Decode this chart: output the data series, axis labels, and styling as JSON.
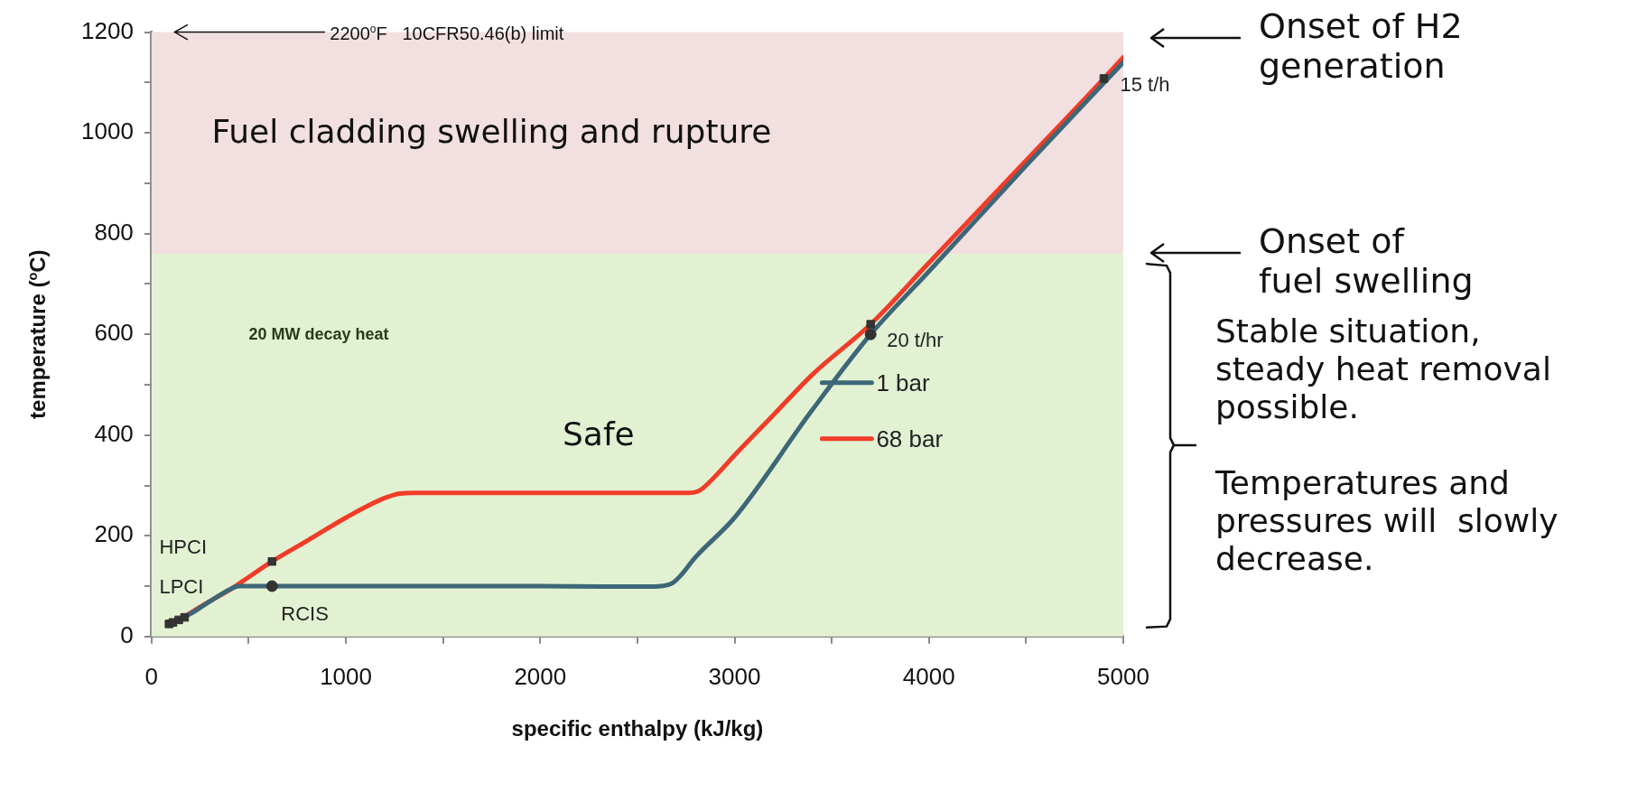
{
  "chart_data": {
    "type": "line",
    "xlabel": "specific enthalpy (kJ/kg)",
    "ylabel": "temperature ($^{o}$C)",
    "xlim": [
      0,
      5000
    ],
    "ylim": [
      0,
      1200
    ],
    "xticks": [
      0,
      {
        "value": 500,
        "label": null
      },
      1000,
      {
        "value": 1500,
        "label": null
      },
      2000,
      {
        "value": 2500,
        "label": null
      },
      3000,
      {
        "value": 3500,
        "label": null
      },
      4000,
      {
        "value": 4500,
        "label": null
      },
      5000
    ],
    "yticks": [
      0,
      {
        "value": 100,
        "label": null
      },
      200,
      {
        "value": 300,
        "label": null
      },
      400,
      {
        "value": 500,
        "label": null
      },
      600,
      {
        "value": 700,
        "label": null
      },
      800,
      {
        "value": 900,
        "label": null
      },
      1000,
      {
        "value": 1100,
        "label": null
      },
      1200
    ],
    "legend": "right",
    "marker": "none",
    "line_style": "solid",
    "series": [
      {
        "name": "1 bar",
        "color": "#3d6777",
        "x": [
          100,
          200,
          300,
          400,
          450,
          500,
          1000,
          2000,
          2550,
          2620,
          2680,
          2720,
          2800,
          3000,
          3400,
          3700,
          4000,
          4500,
          5000
        ],
        "values": [
          25,
          45,
          70,
          93,
          100,
          100,
          100,
          100,
          99,
          100,
          106,
          120,
          158,
          236,
          450,
          600,
          725,
          935,
          1140
        ]
      },
      {
        "name": "68 bar",
        "color": "#f03c28",
        "x": [
          175,
          200,
          300,
          400,
          500,
          620,
          800,
          1000,
          1200,
          1280,
          1350,
          2000,
          2750,
          2820,
          2900,
          3000,
          3200,
          3400,
          3700,
          4000,
          4500,
          4900,
          5000
        ],
        "values": [
          41,
          47,
          70,
          92,
          118,
          149,
          190,
          236,
          275,
          284,
          285,
          285,
          285,
          290,
          318,
          360,
          440,
          520,
          620,
          742,
          945,
          1108,
          1150
        ]
      },
      {
        "type": "scatter",
        "marker": "square",
        "color": "#333333",
        "x": [
          90,
          110,
          140,
          170,
          620,
          3700,
          4900
        ],
        "values": [
          25,
          28,
          33,
          38,
          149,
          620,
          1108
        ]
      },
      {
        "type": "scatter",
        "marker": "circle",
        "color": "#333333",
        "x": [
          620,
          3700
        ],
        "values": [
          100,
          600
        ]
      }
    ],
    "bands": [
      {
        "axis": "y",
        "from": 0,
        "to": 760,
        "label": "Safe",
        "color": "#e3f1d3"
      },
      {
        "axis": "y",
        "from": 760,
        "to": 1200,
        "label": "Fuel cladding swelling and rupture",
        "color": "#f2dfdf"
      }
    ],
    "annotations": [
      {
        "text": "2200$^{o}$F   10CFR50.46(b) limit",
        "x": 100,
        "y": 1200
      },
      "20 MW decay heat",
      "HPCI",
      "LPCI",
      {
        "text": "RCIS",
        "x": 620,
        "y": 100
      },
      {
        "text": "20 t/hr",
        "x": 3700,
        "y": 600
      },
      {
        "text": "15 t/h",
        "x": 4900,
        "y": 1108
      },
      "Onset of H2\ngeneration",
      "Onset of\nfuel swelling",
      "Stable situation,\nsteady heat removal\npossible.\n\nTemperatures and\npressures will  slowly\ndecrease."
    ]
  }
}
